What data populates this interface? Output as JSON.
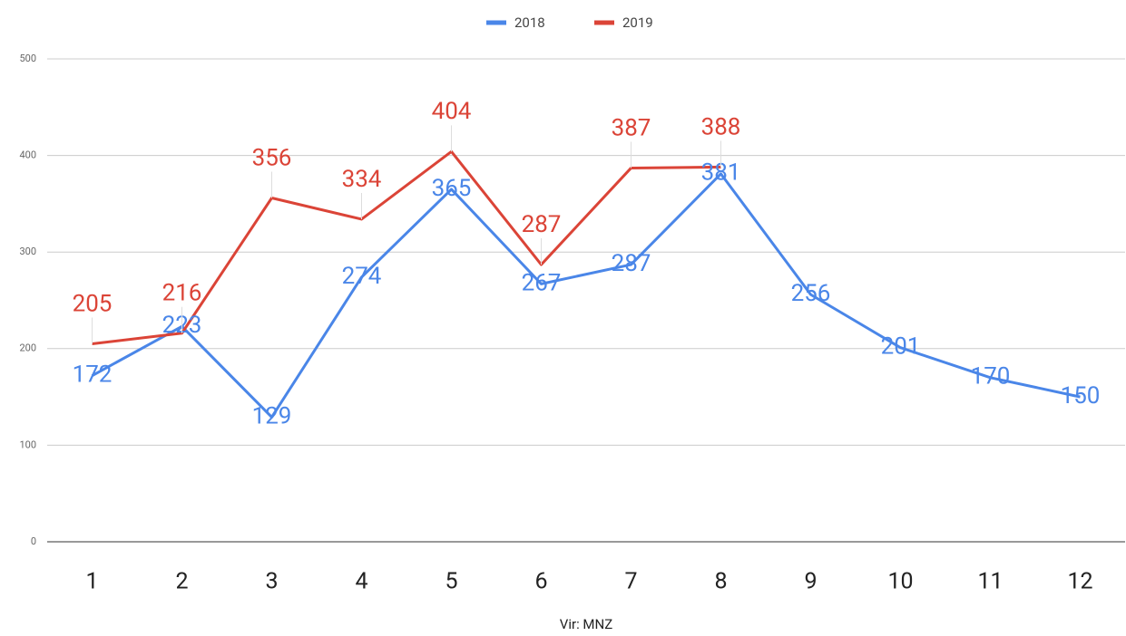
{
  "chart_data": {
    "type": "line",
    "categories": [
      "1",
      "2",
      "3",
      "4",
      "5",
      "6",
      "7",
      "8",
      "9",
      "10",
      "11",
      "12"
    ],
    "series": [
      {
        "name": "2018",
        "color": "#4a86e8",
        "values": [
          172,
          223,
          129,
          274,
          365,
          267,
          287,
          381,
          256,
          201,
          170,
          150
        ]
      },
      {
        "name": "2019",
        "color": "#db4437",
        "values": [
          205,
          216,
          356,
          334,
          404,
          287,
          387,
          388,
          null,
          null,
          null,
          null
        ]
      }
    ],
    "x_label": "Vir: MNZ",
    "ylim": [
      0,
      500
    ],
    "yticks": [
      0,
      100,
      200,
      300,
      400,
      500
    ],
    "grid": true,
    "legend": "top"
  }
}
